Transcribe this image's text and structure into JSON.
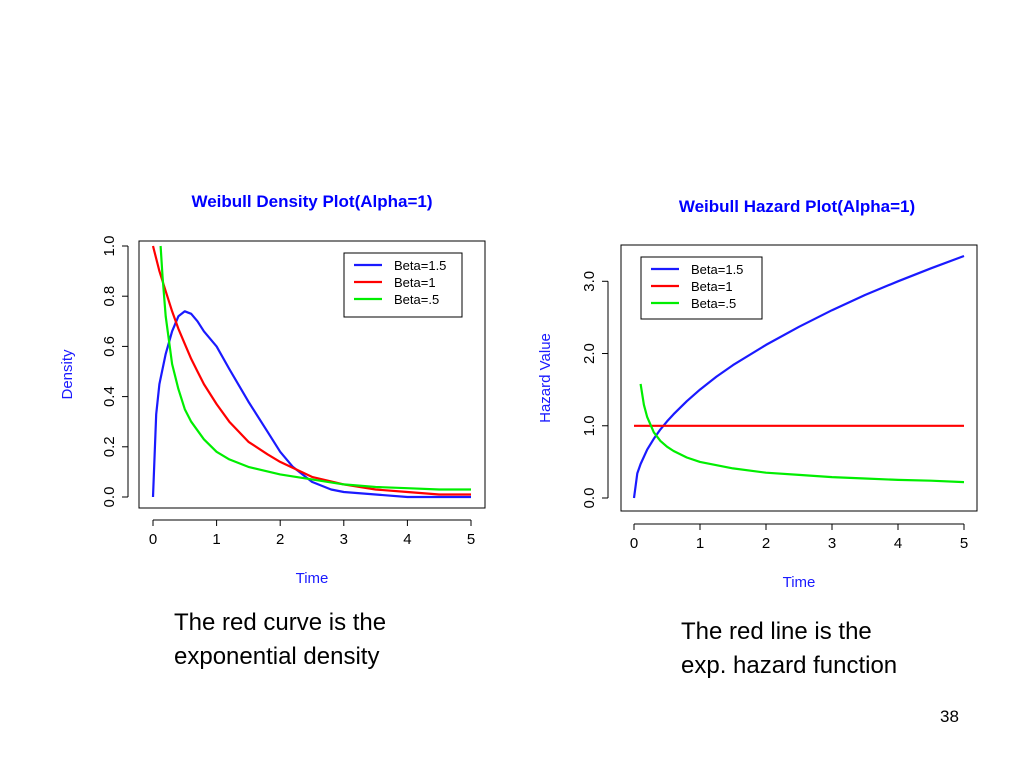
{
  "chart_data": [
    {
      "type": "line",
      "title": "Weibull Density Plot(Alpha=1)",
      "xlabel": "Time",
      "ylabel": "Density",
      "xlim": [
        0,
        5
      ],
      "ylim": [
        0,
        1.0
      ],
      "x_ticks": [
        "0",
        "1",
        "2",
        "3",
        "4",
        "5"
      ],
      "y_ticks": [
        "0.0",
        "0.2",
        "0.4",
        "0.6",
        "0.8",
        "1.0"
      ],
      "grid": false,
      "legend_position": "top-right",
      "series": [
        {
          "name": "Beta=1.5",
          "color": "#1a1aff",
          "x": [
            0.0,
            0.05,
            0.1,
            0.2,
            0.3,
            0.4,
            0.5,
            0.6,
            0.7,
            0.8,
            1.0,
            1.2,
            1.5,
            1.8,
            2.0,
            2.2,
            2.5,
            2.8,
            3.0,
            3.5,
            4.0,
            4.5,
            5.0
          ],
          "y": [
            0.0,
            0.33,
            0.45,
            0.57,
            0.66,
            0.72,
            0.74,
            0.73,
            0.7,
            0.66,
            0.6,
            0.51,
            0.38,
            0.26,
            0.18,
            0.12,
            0.06,
            0.03,
            0.02,
            0.01,
            0.0,
            0.0,
            0.0
          ]
        },
        {
          "name": "Beta=1",
          "color": "#ff0000",
          "x": [
            0.0,
            0.1,
            0.2,
            0.3,
            0.4,
            0.5,
            0.6,
            0.7,
            0.8,
            1.0,
            1.2,
            1.5,
            1.8,
            2.0,
            2.5,
            3.0,
            3.5,
            4.0,
            4.5,
            5.0
          ],
          "y": [
            1.0,
            0.9,
            0.82,
            0.74,
            0.67,
            0.61,
            0.55,
            0.5,
            0.45,
            0.37,
            0.3,
            0.22,
            0.17,
            0.14,
            0.08,
            0.05,
            0.03,
            0.02,
            0.01,
            0.01
          ]
        },
        {
          "name": "Beta=.5",
          "color": "#00ee00",
          "x": [
            0.12,
            0.15,
            0.2,
            0.3,
            0.4,
            0.5,
            0.6,
            0.8,
            1.0,
            1.2,
            1.5,
            2.0,
            2.5,
            3.0,
            3.5,
            4.0,
            4.5,
            5.0
          ],
          "y": [
            1.0,
            0.88,
            0.72,
            0.53,
            0.43,
            0.35,
            0.3,
            0.23,
            0.18,
            0.15,
            0.12,
            0.09,
            0.07,
            0.05,
            0.04,
            0.035,
            0.03,
            0.03
          ]
        }
      ]
    },
    {
      "type": "line",
      "title": "Weibull Hazard Plot(Alpha=1)",
      "xlabel": "Time",
      "ylabel": "Hazard Value",
      "xlim": [
        0,
        5
      ],
      "ylim": [
        0,
        3.35
      ],
      "x_ticks": [
        "0",
        "1",
        "2",
        "3",
        "4",
        "5"
      ],
      "y_ticks": [
        "0.0",
        "1.0",
        "2.0",
        "3.0"
      ],
      "y_tick_values": [
        0.0,
        1.0,
        2.0,
        3.0
      ],
      "grid": false,
      "legend_position": "top-left",
      "series": [
        {
          "name": "Beta=1.5",
          "color": "#1a1aff",
          "x": [
            0.0,
            0.05,
            0.1,
            0.2,
            0.3,
            0.4,
            0.5,
            0.6,
            0.8,
            1.0,
            1.25,
            1.5,
            2.0,
            2.5,
            3.0,
            3.5,
            4.0,
            4.5,
            5.0
          ],
          "y": [
            0.0,
            0.34,
            0.47,
            0.67,
            0.82,
            0.95,
            1.06,
            1.16,
            1.34,
            1.5,
            1.68,
            1.84,
            2.12,
            2.37,
            2.6,
            2.81,
            3.0,
            3.18,
            3.35
          ]
        },
        {
          "name": "Beta=1",
          "color": "#ff0000",
          "x": [
            0.0,
            5.0
          ],
          "y": [
            1.0,
            1.0
          ]
        },
        {
          "name": "Beta=.5",
          "color": "#00ee00",
          "x": [
            0.1,
            0.15,
            0.2,
            0.3,
            0.4,
            0.5,
            0.6,
            0.8,
            1.0,
            1.5,
            2.0,
            2.5,
            3.0,
            3.5,
            4.0,
            4.5,
            5.0
          ],
          "y": [
            1.58,
            1.29,
            1.12,
            0.91,
            0.79,
            0.71,
            0.65,
            0.56,
            0.5,
            0.41,
            0.35,
            0.32,
            0.29,
            0.27,
            0.25,
            0.24,
            0.22
          ]
        }
      ]
    }
  ],
  "captions": {
    "left": [
      "The red curve is the",
      "exponential density"
    ],
    "right": [
      "The red line is the",
      "exp. hazard function"
    ]
  },
  "page_number": "38",
  "colors": {
    "title": "#0000ff",
    "axis_label": "#1a1aff"
  }
}
